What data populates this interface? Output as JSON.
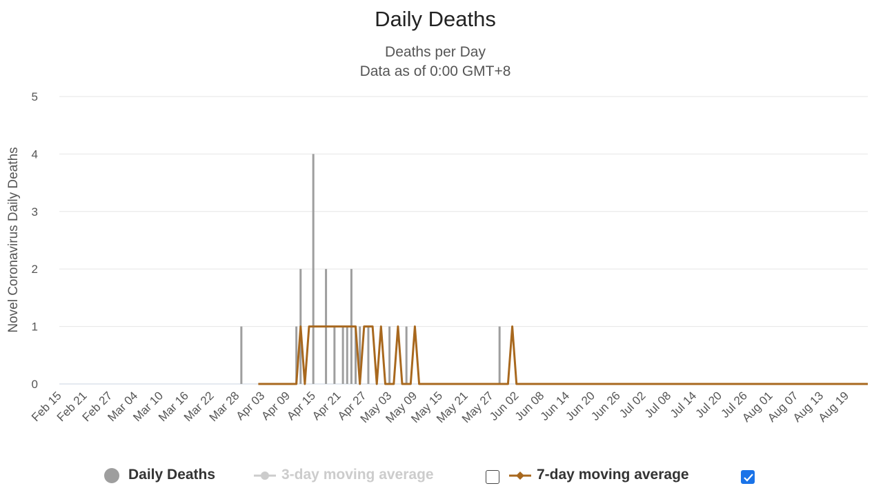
{
  "chart_data": {
    "type": "bar",
    "title": "Daily Deaths",
    "subtitle": [
      "Deaths per Day",
      "Data as of 0:00 GMT+8"
    ],
    "ylabel": "Novel Coronavirus Daily Deaths",
    "ylim": [
      0,
      5
    ],
    "yticks": [
      0,
      1,
      2,
      3,
      4,
      5
    ],
    "x_tick_labels": [
      "Feb 15",
      "Feb 21",
      "Feb 27",
      "Mar 04",
      "Mar 10",
      "Mar 16",
      "Mar 22",
      "Mar 28",
      "Apr 03",
      "Apr 09",
      "Apr 15",
      "Apr 21",
      "Apr 27",
      "May 03",
      "May 09",
      "May 15",
      "May 21",
      "May 27",
      "Jun 02",
      "Jun 08",
      "Jun 14",
      "Jun 20",
      "Jun 26",
      "Jul 02",
      "Jul 08",
      "Jul 14",
      "Jul 20",
      "Jul 26",
      "Aug 01",
      "Aug 07",
      "Aug 13",
      "Aug 19"
    ],
    "x_range": [
      "Feb 15",
      "Aug 24"
    ],
    "grid": true,
    "legend_position": "bottom",
    "series": [
      {
        "name": "Daily Deaths",
        "type": "bar",
        "color": "#9e9e9e",
        "points": [
          {
            "date": "Mar 29",
            "value": 1
          },
          {
            "date": "Apr 11",
            "value": 1
          },
          {
            "date": "Apr 12",
            "value": 2
          },
          {
            "date": "Apr 15",
            "value": 4
          },
          {
            "date": "Apr 18",
            "value": 2
          },
          {
            "date": "Apr 20",
            "value": 1
          },
          {
            "date": "Apr 22",
            "value": 1
          },
          {
            "date": "Apr 23",
            "value": 1
          },
          {
            "date": "Apr 24",
            "value": 2
          },
          {
            "date": "Apr 25",
            "value": 1
          },
          {
            "date": "Apr 26",
            "value": 1
          },
          {
            "date": "Apr 28",
            "value": 1
          },
          {
            "date": "May 03",
            "value": 1
          },
          {
            "date": "May 07",
            "value": 1
          },
          {
            "date": "May 29",
            "value": 1
          }
        ]
      },
      {
        "name": "3-day moving average",
        "type": "line",
        "color": "#cccccc",
        "visible": false,
        "checked": false
      },
      {
        "name": "7-day moving average",
        "type": "line",
        "color": "#a8681e",
        "visible": true,
        "checked": true,
        "start": "Apr 02",
        "end": "Aug 24",
        "points": [
          {
            "date": "Apr 02",
            "value": 0
          },
          {
            "date": "Apr 11",
            "value": 0
          },
          {
            "date": "Apr 12",
            "value": 1
          },
          {
            "date": "Apr 13",
            "value": 0
          },
          {
            "date": "Apr 14",
            "value": 1
          },
          {
            "date": "Apr 25",
            "value": 1
          },
          {
            "date": "Apr 26",
            "value": 0
          },
          {
            "date": "Apr 27",
            "value": 1
          },
          {
            "date": "Apr 29",
            "value": 1
          },
          {
            "date": "Apr 30",
            "value": 0
          },
          {
            "date": "May 01",
            "value": 1
          },
          {
            "date": "May 02",
            "value": 0
          },
          {
            "date": "May 04",
            "value": 0
          },
          {
            "date": "May 05",
            "value": 1
          },
          {
            "date": "May 06",
            "value": 0
          },
          {
            "date": "May 08",
            "value": 0
          },
          {
            "date": "May 09",
            "value": 1
          },
          {
            "date": "May 10",
            "value": 0
          },
          {
            "date": "May 31",
            "value": 0
          },
          {
            "date": "Jun 01",
            "value": 1
          },
          {
            "date": "Jun 02",
            "value": 0
          },
          {
            "date": "Aug 24",
            "value": 0
          }
        ]
      }
    ]
  }
}
